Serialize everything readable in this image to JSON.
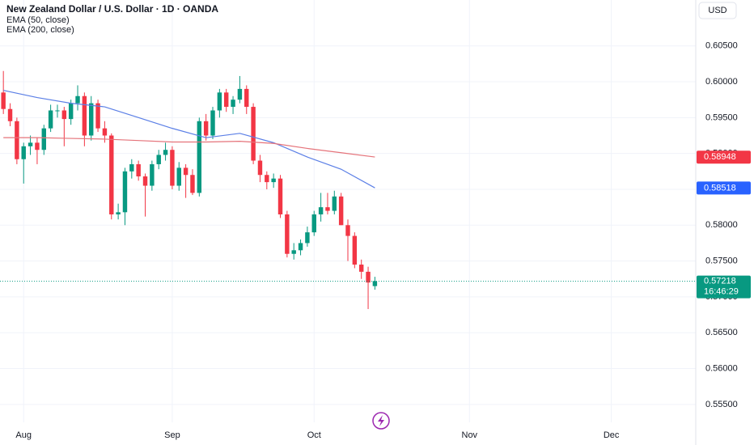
{
  "chart_data": {
    "type": "candlestick",
    "title": "New Zealand Dollar / U.S. Dollar · 1D · OANDA",
    "currency": "USD",
    "grid": true,
    "xlim": [
      -0.5,
      102.5
    ],
    "xticks": [
      {
        "value": 3,
        "label": "Aug"
      },
      {
        "value": 25,
        "label": "Sep"
      },
      {
        "value": 46,
        "label": "Oct"
      },
      {
        "value": 69,
        "label": "Nov"
      },
      {
        "value": 90,
        "label": "Dec"
      }
    ],
    "ylim": [
      0.5525,
      0.6114
    ],
    "yticks": [
      {
        "value": 0.605,
        "label": "0.60500"
      },
      {
        "value": 0.6,
        "label": "0.60000"
      },
      {
        "value": 0.595,
        "label": "0.59500"
      },
      {
        "value": 0.59,
        "label": "0.59000"
      },
      {
        "value": 0.585,
        "label": "0.58500"
      },
      {
        "value": 0.58,
        "label": "0.58000"
      },
      {
        "value": 0.575,
        "label": "0.57500"
      },
      {
        "value": 0.57,
        "label": "0.57000"
      },
      {
        "value": 0.565,
        "label": "0.56500"
      },
      {
        "value": 0.56,
        "label": "0.56000"
      },
      {
        "value": 0.555,
        "label": "0.55500"
      }
    ],
    "candles": {
      "up_color": "#089981",
      "down_color": "#f23645",
      "open": [
        0.5985,
        0.5962,
        0.5945,
        0.5892,
        0.591,
        0.5915,
        0.5905,
        0.5935,
        0.596,
        0.596,
        0.5948,
        0.597,
        0.598,
        0.5925,
        0.597,
        0.5935,
        0.5925,
        0.5815,
        0.5818,
        0.5875,
        0.5885,
        0.5868,
        0.5855,
        0.5885,
        0.5898,
        0.5905,
        0.5855,
        0.588,
        0.587,
        0.5845,
        0.5945,
        0.5925,
        0.596,
        0.5985,
        0.5965,
        0.5975,
        0.599,
        0.5965,
        0.589,
        0.587,
        0.586,
        0.5865,
        0.5815,
        0.576,
        0.5765,
        0.5775,
        0.579,
        0.5815,
        0.5825,
        0.582,
        0.584,
        0.58,
        0.5785,
        0.5745,
        0.5735,
        0.5715
      ],
      "high": [
        0.6015,
        0.597,
        0.595,
        0.5915,
        0.5925,
        0.5922,
        0.594,
        0.5968,
        0.5968,
        0.5965,
        0.5975,
        0.5995,
        0.5985,
        0.598,
        0.5975,
        0.5945,
        0.5928,
        0.583,
        0.588,
        0.5892,
        0.589,
        0.5872,
        0.589,
        0.5905,
        0.5915,
        0.591,
        0.5888,
        0.5885,
        0.5878,
        0.595,
        0.5955,
        0.5965,
        0.599,
        0.599,
        0.598,
        0.6008,
        0.5995,
        0.597,
        0.5898,
        0.5875,
        0.5872,
        0.587,
        0.582,
        0.5775,
        0.578,
        0.5798,
        0.582,
        0.5845,
        0.5845,
        0.5848,
        0.5845,
        0.5808,
        0.579,
        0.5752,
        0.5742,
        0.5728
      ],
      "low": [
        0.5955,
        0.5938,
        0.5885,
        0.5858,
        0.5898,
        0.5885,
        0.5898,
        0.593,
        0.595,
        0.591,
        0.594,
        0.596,
        0.591,
        0.5918,
        0.593,
        0.5915,
        0.5808,
        0.5808,
        0.58,
        0.5865,
        0.5862,
        0.5812,
        0.5848,
        0.5878,
        0.589,
        0.585,
        0.5848,
        0.5838,
        0.5842,
        0.584,
        0.5918,
        0.592,
        0.595,
        0.5958,
        0.5955,
        0.597,
        0.5955,
        0.5885,
        0.586,
        0.585,
        0.5852,
        0.581,
        0.5755,
        0.5752,
        0.5758,
        0.577,
        0.5785,
        0.5805,
        0.5815,
        0.5815,
        0.58,
        0.575,
        0.574,
        0.5725,
        0.5683,
        0.571
      ],
      "close": [
        0.5962,
        0.5945,
        0.5892,
        0.591,
        0.5915,
        0.5905,
        0.5935,
        0.596,
        0.596,
        0.5948,
        0.597,
        0.598,
        0.5925,
        0.597,
        0.5935,
        0.5925,
        0.5815,
        0.5818,
        0.5875,
        0.5885,
        0.5868,
        0.5855,
        0.5885,
        0.5898,
        0.5905,
        0.5855,
        0.588,
        0.587,
        0.5845,
        0.5945,
        0.5925,
        0.596,
        0.5985,
        0.5965,
        0.5975,
        0.599,
        0.5965,
        0.589,
        0.587,
        0.586,
        0.5865,
        0.5815,
        0.576,
        0.5765,
        0.5775,
        0.579,
        0.5815,
        0.5825,
        0.582,
        0.584,
        0.58,
        0.5785,
        0.5745,
        0.5735,
        0.572,
        0.5722
      ],
      "last_price": 0.57218,
      "countdown": "16:46:29"
    },
    "series": [
      {
        "name": "EMA (50, close)",
        "color": "#5b7fe6",
        "x": [
          0,
          5,
          10,
          15,
          20,
          25,
          30,
          35,
          40,
          45,
          50,
          55
        ],
        "values": [
          0.5988,
          0.5978,
          0.597,
          0.5965,
          0.595,
          0.5935,
          0.5922,
          0.5928,
          0.5915,
          0.5895,
          0.5878,
          0.5852
        ],
        "last_value": 0.58518,
        "badge_color": "#2962ff"
      },
      {
        "name": "EMA (200, close)",
        "color": "#e5737a",
        "x": [
          0,
          5,
          10,
          15,
          20,
          25,
          30,
          35,
          40,
          45,
          50,
          55
        ],
        "values": [
          0.5922,
          0.5922,
          0.5921,
          0.592,
          0.5918,
          0.5916,
          0.5916,
          0.5917,
          0.5914,
          0.5907,
          0.5901,
          0.5895
        ],
        "last_value": 0.58948,
        "badge_color": "#f23645"
      }
    ]
  }
}
